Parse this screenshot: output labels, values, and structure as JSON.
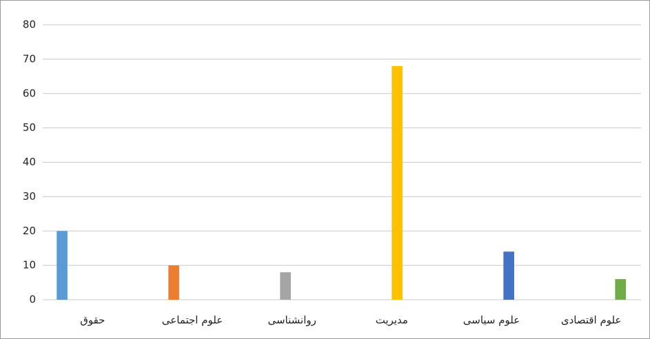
{
  "chart_data": {
    "type": "bar",
    "categories": [
      "حقوق",
      "علوم اجتماعی",
      "روانشناسی",
      "مدیریت",
      "علوم سیاسی",
      "علوم اقتصادی"
    ],
    "values": [
      20,
      10,
      8,
      68,
      14,
      6
    ],
    "colors": [
      "#5b9bd5",
      "#ed7d31",
      "#a5a5a5",
      "#ffc000",
      "#4472c4",
      "#70ad47"
    ],
    "ylim": [
      0,
      80
    ],
    "yticks": [
      0,
      10,
      20,
      30,
      40,
      50,
      60,
      70,
      80
    ],
    "grid": true
  }
}
